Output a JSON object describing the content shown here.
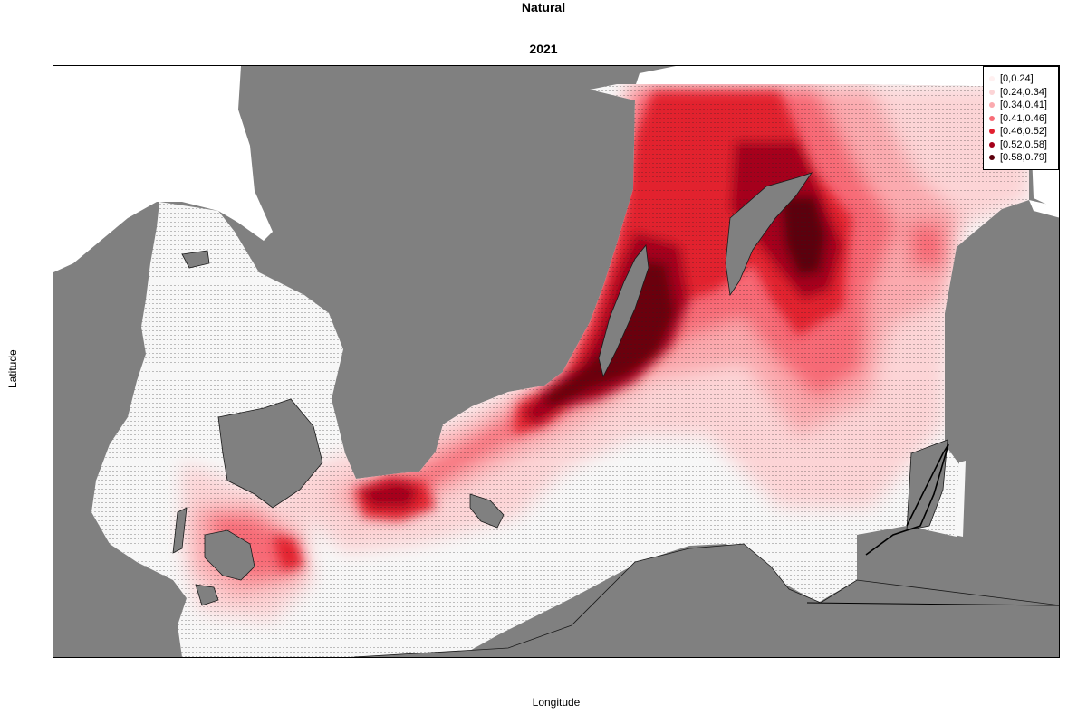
{
  "title": "Natural",
  "subtitle": "2021",
  "xlabel": "Longitude",
  "ylabel": "Latitude",
  "colors": {
    "land": "#808080",
    "sea_base": "#f7f7f7",
    "classes": [
      "#fff5f5",
      "#fcd4d6",
      "#fbaaaf",
      "#f76b76",
      "#e2202f",
      "#a5001a",
      "#6b000f"
    ]
  },
  "legend": {
    "items": [
      {
        "label": "[0,0.24]",
        "color": "#fff0f0"
      },
      {
        "label": "[0.24,0.34]",
        "color": "#fcd4d6"
      },
      {
        "label": "[0.34,0.41]",
        "color": "#fbaaaf"
      },
      {
        "label": "[0.41,0.46]",
        "color": "#f76b76"
      },
      {
        "label": "[0.46,0.52]",
        "color": "#e2202f"
      },
      {
        "label": "[0.52,0.58]",
        "color": "#a5001a"
      },
      {
        "label": "[0.58,0.79]",
        "color": "#5c000c"
      }
    ]
  }
}
